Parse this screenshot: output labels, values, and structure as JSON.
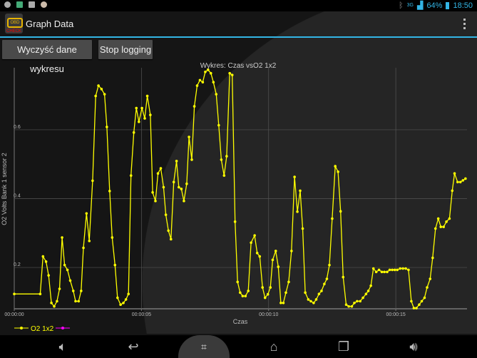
{
  "status_bar": {
    "icons": [
      "gps-icon",
      "app-icon",
      "image-icon",
      "notification-icon"
    ],
    "bluetooth_icon": "bluetooth-icon",
    "network": "3G",
    "battery": "64%",
    "time": "18:50"
  },
  "action_bar": {
    "logo_text": "OBD",
    "logo_subtext": "CHECK",
    "title": "Graph Data",
    "menu_icon": "overflow-menu-icon"
  },
  "toolbar": {
    "clear_label": "Wyczyść dane wykresu",
    "stop_label": "Stop logging"
  },
  "chart_data": {
    "type": "line",
    "title": "Wykres: Czas vsO2 1x2",
    "xlabel": "Czas",
    "ylabel": "O2 Volts Bank 1 sensor 2",
    "x_ticks": [
      "00:00:00",
      "00:00:05",
      "00:00:10",
      "00:00:15"
    ],
    "x_tick_values": [
      0,
      5,
      10,
      15
    ],
    "y_ticks": [
      "0.2",
      "0.4",
      "0.6"
    ],
    "y_tick_values": [
      0.2,
      0.4,
      0.6
    ],
    "xlim": [
      0,
      17.8
    ],
    "ylim": [
      0.08,
      0.78
    ],
    "grid": true,
    "legend_position": "bottom-left",
    "series": [
      {
        "name": "O2 1x2",
        "color": "#ffff00",
        "x": [
          0,
          1.02,
          1.13,
          1.25,
          1.35,
          1.46,
          1.57,
          1.68,
          1.78,
          1.88,
          1.98,
          2.09,
          2.2,
          2.32,
          2.41,
          2.53,
          2.63,
          2.72,
          2.84,
          2.95,
          3.08,
          3.2,
          3.31,
          3.43,
          3.55,
          3.64,
          3.75,
          3.85,
          3.96,
          4.06,
          4.18,
          4.29,
          4.39,
          4.49,
          4.59,
          4.7,
          4.8,
          4.9,
          5.02,
          5.13,
          5.23,
          5.35,
          5.44,
          5.55,
          5.65,
          5.76,
          5.87,
          5.96,
          6.06,
          6.16,
          6.27,
          6.38,
          6.47,
          6.57,
          6.67,
          6.78,
          6.87,
          6.98,
          7.08,
          7.19,
          7.3,
          7.41,
          7.51,
          7.62,
          7.73,
          7.83,
          7.94,
          8.04,
          8.14,
          8.25,
          8.35,
          8.47,
          8.57,
          8.68,
          8.78,
          8.88,
          8.98,
          9.09,
          9.2,
          9.31,
          9.45,
          9.55,
          9.65,
          9.76,
          9.86,
          9.97,
          10.07,
          10.16,
          10.28,
          10.38,
          10.48,
          10.58,
          10.68,
          10.79,
          10.9,
          11.02,
          11.13,
          11.24,
          11.34,
          11.44,
          11.56,
          11.66,
          11.77,
          11.87,
          11.98,
          12.08,
          12.19,
          12.29,
          12.39,
          12.5,
          12.62,
          12.73,
          12.83,
          12.93,
          13.05,
          13.15,
          13.27,
          13.37,
          13.48,
          13.6,
          13.71,
          13.83,
          13.92,
          14.02,
          14.12,
          14.23,
          14.34,
          14.45,
          14.55,
          14.66,
          14.76,
          14.86,
          14.96,
          15.06,
          15.17,
          15.28,
          15.39,
          15.5,
          15.61,
          15.71,
          15.81,
          15.92,
          16.02,
          16.13,
          16.23,
          16.35,
          16.45,
          16.56,
          16.67,
          16.77,
          16.88,
          16.99,
          17.11,
          17.22,
          17.31,
          17.43,
          17.54,
          17.64,
          17.74
        ],
        "y": [
          0.123,
          0.123,
          0.232,
          0.217,
          0.177,
          0.097,
          0.087,
          0.102,
          0.138,
          0.287,
          0.207,
          0.193,
          0.162,
          0.132,
          0.102,
          0.102,
          0.132,
          0.257,
          0.357,
          0.277,
          0.452,
          0.698,
          0.728,
          0.718,
          0.703,
          0.608,
          0.422,
          0.287,
          0.207,
          0.112,
          0.092,
          0.097,
          0.107,
          0.123,
          0.467,
          0.592,
          0.663,
          0.623,
          0.663,
          0.633,
          0.698,
          0.643,
          0.418,
          0.393,
          0.473,
          0.488,
          0.433,
          0.353,
          0.307,
          0.282,
          0.448,
          0.509,
          0.433,
          0.428,
          0.393,
          0.443,
          0.579,
          0.513,
          0.668,
          0.728,
          0.744,
          0.738,
          0.768,
          0.774,
          0.764,
          0.738,
          0.703,
          0.613,
          0.513,
          0.467,
          0.523,
          0.764,
          0.759,
          0.333,
          0.158,
          0.127,
          0.117,
          0.117,
          0.132,
          0.272,
          0.293,
          0.242,
          0.232,
          0.142,
          0.112,
          0.122,
          0.142,
          0.222,
          0.248,
          0.202,
          0.097,
          0.097,
          0.127,
          0.158,
          0.248,
          0.463,
          0.362,
          0.423,
          0.313,
          0.127,
          0.107,
          0.102,
          0.097,
          0.107,
          0.123,
          0.132,
          0.152,
          0.167,
          0.207,
          0.342,
          0.494,
          0.478,
          0.363,
          0.172,
          0.092,
          0.087,
          0.087,
          0.097,
          0.102,
          0.102,
          0.112,
          0.123,
          0.132,
          0.147,
          0.197,
          0.187,
          0.193,
          0.187,
          0.187,
          0.187,
          0.193,
          0.193,
          0.193,
          0.193,
          0.197,
          0.197,
          0.197,
          0.193,
          0.102,
          0.082,
          0.082,
          0.092,
          0.102,
          0.112,
          0.142,
          0.167,
          0.228,
          0.313,
          0.342,
          0.318,
          0.318,
          0.333,
          0.342,
          0.423,
          0.473,
          0.448,
          0.448,
          0.453,
          0.458
        ]
      },
      {
        "name": "",
        "color": "#ff00ff",
        "x": [],
        "y": []
      }
    ]
  },
  "nav_bar": {
    "icons": [
      "volume-down-icon",
      "back-icon",
      "screenshot-icon",
      "home-icon",
      "recent-apps-icon",
      "volume-up-icon"
    ]
  }
}
